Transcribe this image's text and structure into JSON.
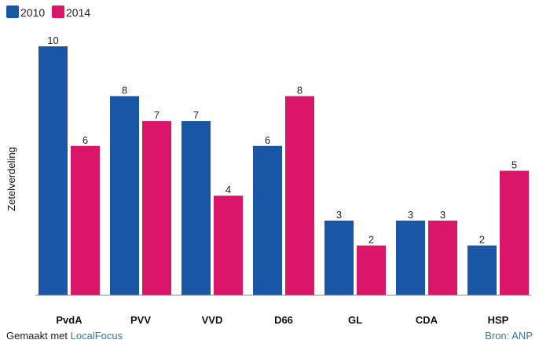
{
  "chart_data": {
    "type": "bar",
    "title": "",
    "xlabel": "",
    "ylabel": "Zetelverdeling",
    "categories": [
      "PvdA",
      "PVV",
      "VVD",
      "D66",
      "GL",
      "CDA",
      "HSP"
    ],
    "series": [
      {
        "name": "2010",
        "color": "#1a56a6",
        "values": [
          10,
          8,
          7,
          6,
          3,
          3,
          2
        ]
      },
      {
        "name": "2014",
        "color": "#d9166a",
        "values": [
          6,
          7,
          4,
          8,
          2,
          3,
          5
        ]
      }
    ],
    "ylim": [
      0,
      10
    ],
    "grid": false,
    "legend": "top-left",
    "data_labels": true
  },
  "footer": {
    "made_with": "Gemaakt met ",
    "tool": "LocalFocus",
    "source": "Bron: ANP"
  }
}
